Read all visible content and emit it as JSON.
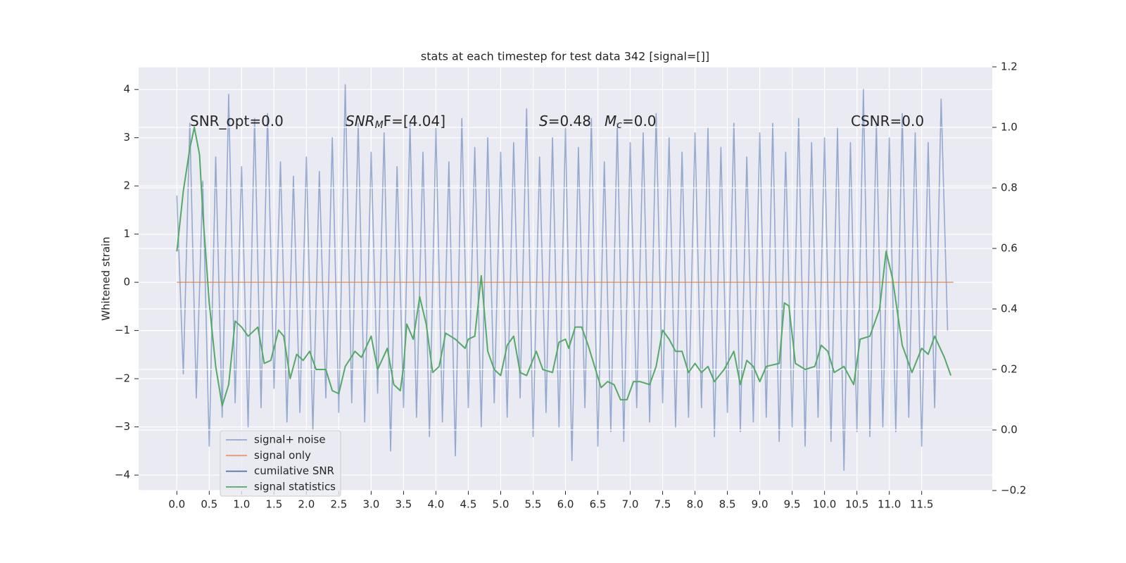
{
  "chart_data": {
    "type": "line",
    "title": "stats at each timestep for test data 342 [signal=[]]",
    "ylabel": "Whitened strain",
    "annotations": [
      {
        "main": "SNR_opt=0.0"
      },
      {
        "main": "SNR",
        "sub": "M",
        "rest": "F=[4.04]"
      },
      {
        "main": "S",
        "rest": "=0.48"
      },
      {
        "main": "M",
        "sub": "c",
        "rest": "=0.0"
      },
      {
        "main": "CSNR=0.0"
      }
    ],
    "xlim": [
      -0.59,
      12.59
    ],
    "ylim": [
      -4.32,
      4.47
    ],
    "y2lim": [
      -0.2,
      1.2
    ],
    "xticks": [
      {
        "value": 0,
        "label": "0.0"
      },
      0.5,
      {
        "value": 1,
        "label": "1.0"
      },
      1.5,
      {
        "value": 2,
        "label": "2.0"
      },
      2.5,
      {
        "value": 3,
        "label": "3.0"
      },
      3.5,
      {
        "value": 4,
        "label": "4.0"
      },
      4.5,
      {
        "value": 5,
        "label": "5.0"
      },
      5.5,
      {
        "value": 6,
        "label": "6.0"
      },
      6.5,
      {
        "value": 7,
        "label": "7.0"
      },
      7.5,
      {
        "value": 8,
        "label": "8.0"
      },
      8.5,
      {
        "value": 9,
        "label": "9.0"
      },
      9.5,
      {
        "value": 10,
        "label": "10.0"
      },
      10.5,
      {
        "value": 11,
        "label": "11.0"
      },
      11.5
    ],
    "yticks": [
      {
        "value": -4,
        "label": "−4"
      },
      {
        "value": -3,
        "label": "−3"
      },
      {
        "value": -2,
        "label": "−2"
      },
      {
        "value": -1,
        "label": "−1"
      },
      0,
      1,
      2,
      3,
      4
    ],
    "y2ticks": [
      {
        "value": -0.2,
        "label": "−0.2"
      },
      {
        "value": 0,
        "label": "0.0"
      },
      0.2,
      0.4,
      0.6,
      0.8,
      {
        "value": 1,
        "label": "1.0"
      },
      1.2
    ],
    "grid": true,
    "legend": "lower left",
    "series": [
      {
        "name": "signal+ noise",
        "color": "#4c72b0",
        "x": [
          0,
          0.1,
          0.2,
          0.3,
          0.4,
          0.5,
          0.6,
          0.7,
          0.8,
          0.9,
          1,
          1.1,
          1.2,
          1.3,
          1.4,
          1.5,
          1.6,
          1.7,
          1.8,
          1.9,
          2,
          2.1,
          2.2,
          2.3,
          2.4,
          2.5,
          2.6,
          2.7,
          2.8,
          2.9,
          3,
          3.1,
          3.2,
          3.3,
          3.4,
          3.5,
          3.6,
          3.7,
          3.8,
          3.9,
          4,
          4.1,
          4.2,
          4.3,
          4.4,
          4.5,
          4.6,
          4.7,
          4.8,
          4.9,
          5,
          5.1,
          5.2,
          5.3,
          5.4,
          5.5,
          5.6,
          5.7,
          5.8,
          5.9,
          6,
          6.1,
          6.2,
          6.3,
          6.4,
          6.5,
          6.6,
          6.7,
          6.8,
          6.9,
          7,
          7.1,
          7.2,
          7.3,
          7.4,
          7.5,
          7.6,
          7.7,
          7.8,
          7.9,
          8,
          8.1,
          8.2,
          8.3,
          8.4,
          8.5,
          8.6,
          8.7,
          8.8,
          8.9,
          9,
          9.1,
          9.2,
          9.3,
          9.4,
          9.5,
          9.6,
          9.7,
          9.8,
          9.9,
          10,
          10.1,
          10.2,
          10.3,
          10.4,
          10.5,
          10.6,
          10.7,
          10.8,
          10.9,
          11,
          11.1,
          11.2,
          11.3,
          11.4,
          11.5,
          11.6,
          11.7,
          11.8,
          11.9
        ],
        "values": [
          1.8,
          -1.9,
          3.3,
          -2.4,
          2.1,
          -3.4,
          2.6,
          -2.8,
          3.9,
          -2.5,
          2.4,
          -3.0,
          3.4,
          -2.6,
          3.5,
          -2.2,
          2.5,
          -2.9,
          2.2,
          -2.7,
          2.6,
          -3.1,
          2.3,
          -2.4,
          3.0,
          -2.7,
          4.1,
          -2.5,
          3.3,
          -2.9,
          2.7,
          -2.3,
          3.1,
          -3.5,
          2.4,
          -2.6,
          3.3,
          -2.8,
          2.7,
          -3.2,
          3.2,
          -2.9,
          2.5,
          -3.6,
          3.4,
          -2.6,
          2.8,
          -3.0,
          3.0,
          -2.5,
          2.7,
          -2.8,
          2.9,
          -2.4,
          3.6,
          -3.2,
          2.6,
          -2.7,
          3.0,
          -3.0,
          3.2,
          -3.7,
          2.8,
          -2.6,
          3.4,
          -3.4,
          2.5,
          -3.1,
          3.3,
          -3.3,
          2.9,
          -2.6,
          3.1,
          -2.9,
          3.5,
          -2.5,
          3.0,
          -3.0,
          2.7,
          -2.8,
          3.1,
          -2.6,
          3.2,
          -3.2,
          2.8,
          -2.7,
          3.3,
          -3.1,
          2.6,
          -2.9,
          3.1,
          -2.8,
          3.3,
          -3.3,
          2.7,
          -3.0,
          3.4,
          -3.4,
          2.9,
          -2.8,
          3.0,
          -3.3,
          3.2,
          -3.9,
          2.9,
          -3.1,
          4.0,
          -3.2,
          3.3,
          -3.0,
          3.0,
          -3.1,
          3.5,
          -2.8,
          3.1,
          -3.4,
          2.9,
          -2.6,
          3.8,
          -1.0
        ]
      },
      {
        "name": "signal only",
        "color": "#dd8452",
        "x": [
          0,
          11.99
        ],
        "values": [
          0,
          0
        ]
      },
      {
        "name": "cumilative SNR",
        "color": "#4c72b0",
        "x": [],
        "values": []
      },
      {
        "name": "signal statistics",
        "color": "#55a868",
        "axis": "y2",
        "x": [
          0,
          0.1,
          0.2,
          0.27,
          0.35,
          0.4,
          0.5,
          0.6,
          0.7,
          0.8,
          0.9,
          1.0,
          1.1,
          1.25,
          1.35,
          1.45,
          1.57,
          1.65,
          1.75,
          1.85,
          1.95,
          2.05,
          2.15,
          2.3,
          2.4,
          2.5,
          2.6,
          2.75,
          2.85,
          3.0,
          3.1,
          3.25,
          3.35,
          3.45,
          3.5,
          3.55,
          3.65,
          3.75,
          3.85,
          3.95,
          4.05,
          4.15,
          4.3,
          4.45,
          4.5,
          4.6,
          4.7,
          4.8,
          4.9,
          5.0,
          5.1,
          5.2,
          5.3,
          5.4,
          5.55,
          5.65,
          5.8,
          5.9,
          6.0,
          6.05,
          6.15,
          6.25,
          6.35,
          6.45,
          6.55,
          6.65,
          6.75,
          6.85,
          6.95,
          7.05,
          7.15,
          7.3,
          7.4,
          7.5,
          7.6,
          7.7,
          7.8,
          7.9,
          8.0,
          8.1,
          8.2,
          8.3,
          8.45,
          8.6,
          8.7,
          8.8,
          8.9,
          9.0,
          9.1,
          9.3,
          9.38,
          9.45,
          9.55,
          9.7,
          9.85,
          9.95,
          10.05,
          10.15,
          10.3,
          10.45,
          10.55,
          10.7,
          10.85,
          10.95,
          11.05,
          11.2,
          11.35,
          11.5,
          11.6,
          11.7,
          11.85,
          11.95
        ],
        "values": [
          0.59,
          0.79,
          0.93,
          1.0,
          0.91,
          0.72,
          0.42,
          0.21,
          0.08,
          0.15,
          0.36,
          0.34,
          0.31,
          0.34,
          0.22,
          0.23,
          0.33,
          0.31,
          0.17,
          0.25,
          0.23,
          0.26,
          0.2,
          0.2,
          0.13,
          0.12,
          0.21,
          0.26,
          0.24,
          0.31,
          0.2,
          0.27,
          0.15,
          0.13,
          0.21,
          0.35,
          0.3,
          0.44,
          0.35,
          0.19,
          0.21,
          0.32,
          0.3,
          0.27,
          0.3,
          0.31,
          0.51,
          0.26,
          0.2,
          0.18,
          0.28,
          0.31,
          0.19,
          0.18,
          0.26,
          0.2,
          0.19,
          0.29,
          0.3,
          0.27,
          0.34,
          0.34,
          0.28,
          0.21,
          0.14,
          0.16,
          0.15,
          0.1,
          0.1,
          0.16,
          0.16,
          0.15,
          0.21,
          0.33,
          0.3,
          0.26,
          0.26,
          0.19,
          0.22,
          0.19,
          0.21,
          0.16,
          0.2,
          0.26,
          0.15,
          0.23,
          0.21,
          0.16,
          0.21,
          0.22,
          0.42,
          0.41,
          0.22,
          0.2,
          0.21,
          0.28,
          0.26,
          0.19,
          0.21,
          0.15,
          0.3,
          0.31,
          0.4,
          0.59,
          0.5,
          0.28,
          0.19,
          0.27,
          0.25,
          0.31,
          0.24,
          0.18
        ]
      }
    ]
  }
}
